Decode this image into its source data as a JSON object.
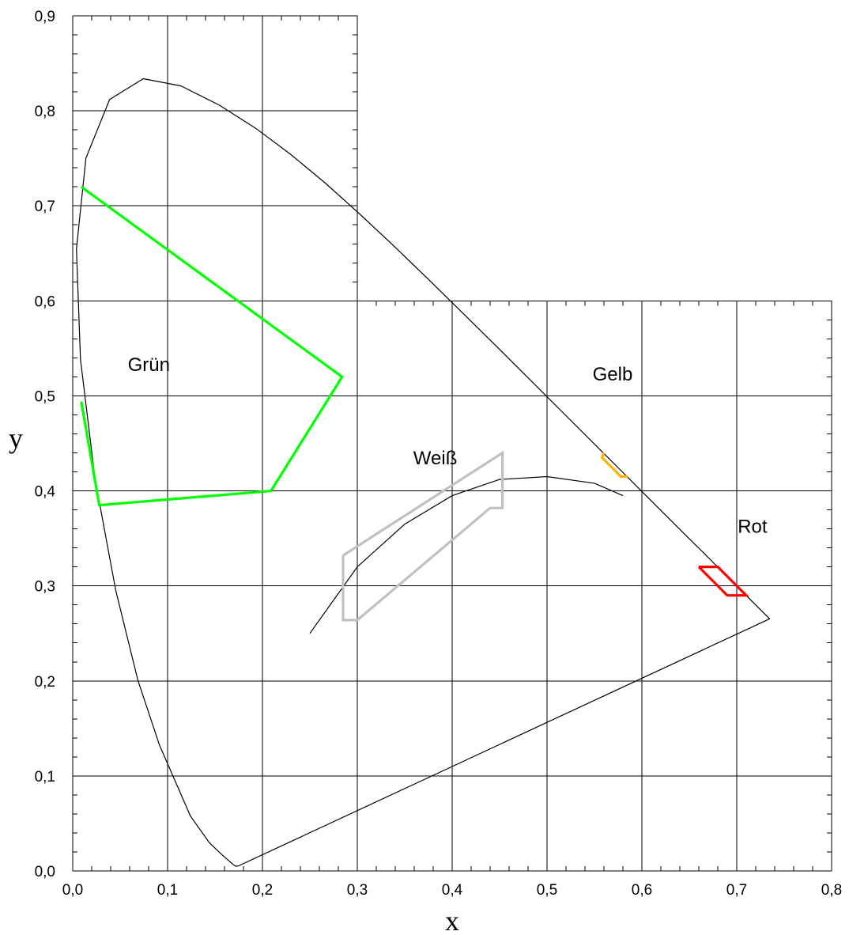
{
  "chart_data": {
    "type": "line",
    "xlabel": "x",
    "ylabel": "y",
    "xlim": [
      0.0,
      0.8
    ],
    "ylim": [
      0.0,
      0.9
    ],
    "grid": true,
    "x_ticks": [
      "0,0",
      "0,1",
      "0,2",
      "0,3",
      "0,4",
      "0,5",
      "0,6",
      "0,7",
      "0,8"
    ],
    "y_ticks": [
      "0,0",
      "0,1",
      "0,2",
      "0,3",
      "0,4",
      "0,5",
      "0,6",
      "0,7",
      "0,8",
      "0,9"
    ],
    "spectral_locus": [
      [
        0.1741,
        0.005
      ],
      [
        0.1714,
        0.0051
      ],
      [
        0.1689,
        0.0069
      ],
      [
        0.1644,
        0.0109
      ],
      [
        0.1566,
        0.0177
      ],
      [
        0.144,
        0.0297
      ],
      [
        0.1241,
        0.0578
      ],
      [
        0.0913,
        0.1327
      ],
      [
        0.0687,
        0.2007
      ],
      [
        0.0454,
        0.295
      ],
      [
        0.0235,
        0.4127
      ],
      [
        0.0082,
        0.5384
      ],
      [
        0.0039,
        0.6548
      ],
      [
        0.0139,
        0.7502
      ],
      [
        0.0389,
        0.812
      ],
      [
        0.0743,
        0.8338
      ],
      [
        0.1142,
        0.8262
      ],
      [
        0.1547,
        0.8059
      ],
      [
        0.1929,
        0.7816
      ],
      [
        0.2296,
        0.7543
      ],
      [
        0.2658,
        0.7243
      ],
      [
        0.3016,
        0.6923
      ],
      [
        0.3373,
        0.6589
      ],
      [
        0.3731,
        0.6245
      ],
      [
        0.4087,
        0.5896
      ],
      [
        0.4441,
        0.5547
      ],
      [
        0.4788,
        0.5202
      ],
      [
        0.5125,
        0.4866
      ],
      [
        0.5448,
        0.4544
      ],
      [
        0.5752,
        0.4242
      ],
      [
        0.6029,
        0.3965
      ],
      [
        0.627,
        0.3725
      ],
      [
        0.6482,
        0.3514
      ],
      [
        0.6658,
        0.334
      ],
      [
        0.6801,
        0.3197
      ],
      [
        0.6915,
        0.3083
      ],
      [
        0.7006,
        0.2993
      ],
      [
        0.714,
        0.2859
      ],
      [
        0.7347,
        0.2653
      ]
    ],
    "planckian_locus": [
      [
        0.25,
        0.25
      ],
      [
        0.3,
        0.32
      ],
      [
        0.35,
        0.365
      ],
      [
        0.4,
        0.395
      ],
      [
        0.45,
        0.412
      ],
      [
        0.5,
        0.415
      ],
      [
        0.55,
        0.408
      ],
      [
        0.58,
        0.395
      ]
    ],
    "series": [
      {
        "name": "Grün",
        "color": "#00ff00",
        "points": [
          [
            0.009,
            0.72
          ],
          [
            0.284,
            0.52
          ],
          [
            0.209,
            0.4
          ],
          [
            0.028,
            0.385
          ],
          [
            0.009,
            0.494
          ]
        ]
      },
      {
        "name": "Weiß",
        "color": "#c0c0c0",
        "points": [
          [
            0.285,
            0.332
          ],
          [
            0.453,
            0.44
          ],
          [
            0.453,
            0.382
          ],
          [
            0.44,
            0.382
          ],
          [
            0.3,
            0.264
          ],
          [
            0.285,
            0.264
          ],
          [
            0.285,
            0.332
          ]
        ]
      },
      {
        "name": "Gelb",
        "color": "#ffb000",
        "points": [
          [
            0.56,
            0.44
          ],
          [
            0.558,
            0.435
          ],
          [
            0.578,
            0.415
          ],
          [
            0.585,
            0.415
          ]
        ]
      },
      {
        "name": "Rot",
        "color": "#ff0000",
        "points": [
          [
            0.66,
            0.32
          ],
          [
            0.68,
            0.32
          ],
          [
            0.71,
            0.29
          ],
          [
            0.69,
            0.29
          ],
          [
            0.66,
            0.32
          ]
        ]
      }
    ],
    "annotations": [
      {
        "text": "Grün",
        "x": 0.058,
        "y": 0.526
      },
      {
        "text": "Weiß",
        "x": 0.359,
        "y": 0.428
      },
      {
        "text": "Gelb",
        "x": 0.548,
        "y": 0.516
      },
      {
        "text": "Rot",
        "x": 0.701,
        "y": 0.356
      }
    ]
  }
}
